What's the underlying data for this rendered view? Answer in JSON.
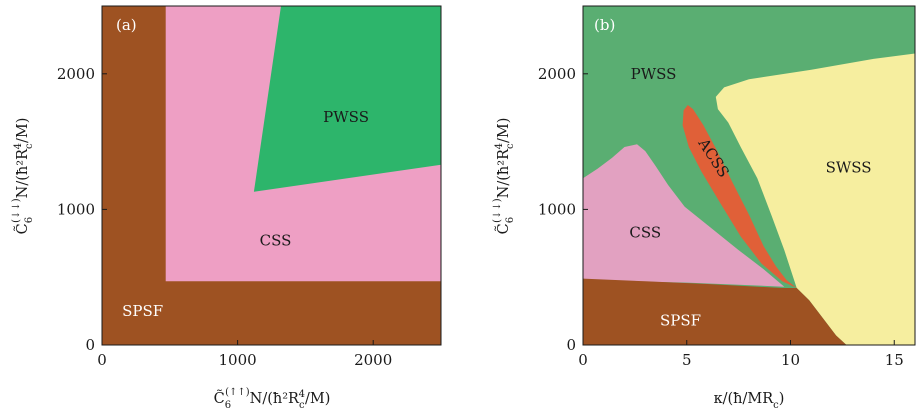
{
  "colors": {
    "SPSF": "#9e5222",
    "CSS": "#ee9fc4",
    "PWSS_a": "#2db56b",
    "PWSS_b": "#5aae72",
    "CSS_b": "#e2a1c1",
    "ACSS": "#e06038",
    "SWSS": "#f6ee9f"
  },
  "chart_data": [
    {
      "type": "heatmap",
      "panel_label": "(a)",
      "xlabel_parts": {
        "pre": "C̃",
        "sub": "6",
        "sup": "(↑↑)",
        "post": "N/(ħ²R",
        "sub2": "c",
        "sup2": "4",
        "end": "/M)"
      },
      "ylabel_parts": {
        "pre": "C̃",
        "sub": "6",
        "sup": "(↓↓)",
        "post": "N/(ħ²R",
        "sub2": "c",
        "sup2": "4",
        "end": "/M)"
      },
      "xlim": [
        0,
        2500
      ],
      "ylim": [
        0,
        2500
      ],
      "xticks": [
        0,
        1000,
        2000
      ],
      "yticks": [
        0,
        1000,
        2000
      ],
      "xtick_labels": [
        "0",
        "1000",
        "2000"
      ],
      "ytick_labels": [
        "0",
        "1000",
        "2000"
      ],
      "regions": [
        {
          "name": "SPSF",
          "color_key": "SPSF",
          "label_at": [
            300,
            250
          ],
          "polygon": [
            [
              0,
              0
            ],
            [
              2500,
              0
            ],
            [
              2500,
              2500
            ],
            [
              0,
              2500
            ]
          ]
        },
        {
          "name": "CSS",
          "color_key": "CSS",
          "label_at": [
            1280,
            770
          ],
          "polygon": [
            [
              470,
              470
            ],
            [
              2500,
              470
            ],
            [
              2500,
              2500
            ],
            [
              470,
              2500
            ]
          ]
        },
        {
          "name": "PWSS",
          "color_key": "PWSS_a",
          "label_at": [
            1800,
            1680
          ],
          "polygon": [
            [
              1120,
              1130
            ],
            [
              1320,
              2500
            ],
            [
              2500,
              2500
            ],
            [
              2500,
              1330
            ]
          ]
        }
      ]
    },
    {
      "type": "heatmap",
      "panel_label": "(b)",
      "xlabel_parts": {
        "pre": "κ/(ħ/MR",
        "sub": "c",
        "end": ")"
      },
      "ylabel_parts": {
        "pre": "C̃",
        "sub": "6",
        "sup": "(↓↓)",
        "post": "N/(ħ²R",
        "sub2": "c",
        "sup2": "4",
        "end": "/M)"
      },
      "xlim": [
        0,
        16
      ],
      "ylim": [
        0,
        2500
      ],
      "xticks": [
        0,
        5,
        10,
        15
      ],
      "yticks": [
        0,
        1000,
        2000
      ],
      "xtick_labels": [
        "0",
        "5",
        "10",
        "15"
      ],
      "ytick_labels": [
        "0",
        "1000",
        "2000"
      ],
      "regions": [
        {
          "name": "PWSS",
          "color_key": "PWSS_b",
          "label_at": [
            3.4,
            2000
          ],
          "polygon": [
            [
              0,
              0
            ],
            [
              16,
              0
            ],
            [
              16,
              2500
            ],
            [
              0,
              2500
            ]
          ]
        },
        {
          "name": "SWSS",
          "color_key": "SWSS",
          "label_at": [
            12.8,
            1310
          ],
          "polygon": [
            [
              6.4,
              1830
            ],
            [
              6.5,
              1740
            ],
            [
              7.0,
              1640
            ],
            [
              7.6,
              1460
            ],
            [
              8.4,
              1230
            ],
            [
              9.1,
              950
            ],
            [
              9.7,
              700
            ],
            [
              10.3,
              420
            ],
            [
              10.9,
              330
            ],
            [
              11.6,
              190
            ],
            [
              12.2,
              70
            ],
            [
              12.7,
              0
            ],
            [
              16,
              0
            ],
            [
              16,
              2150
            ],
            [
              14.0,
              2110
            ],
            [
              11.0,
              2030
            ],
            [
              8.0,
              1960
            ],
            [
              6.8,
              1900
            ]
          ]
        },
        {
          "name": "ACSS",
          "color_key": "ACSS",
          "label_at": [
            6.3,
            1380
          ],
          "rotate": 57,
          "polygon": [
            [
              5.05,
              1770
            ],
            [
              5.3,
              1740
            ],
            [
              5.8,
              1620
            ],
            [
              6.4,
              1450
            ],
            [
              7.2,
              1200
            ],
            [
              8.0,
              960
            ],
            [
              8.7,
              730
            ],
            [
              9.3,
              580
            ],
            [
              9.8,
              480
            ],
            [
              10.3,
              420
            ],
            [
              9.6,
              470
            ],
            [
              8.6,
              600
            ],
            [
              7.6,
              800
            ],
            [
              6.6,
              1050
            ],
            [
              5.7,
              1280
            ],
            [
              5.1,
              1460
            ],
            [
              4.8,
              1620
            ],
            [
              4.85,
              1730
            ]
          ]
        },
        {
          "name": "CSS",
          "color_key": "CSS_b",
          "label_at": [
            3.0,
            830
          ],
          "polygon": [
            [
              0,
              480
            ],
            [
              0,
              1230
            ],
            [
              0.7,
              1300
            ],
            [
              1.4,
              1380
            ],
            [
              2.0,
              1460
            ],
            [
              2.6,
              1480
            ],
            [
              3.0,
              1430
            ],
            [
              3.5,
              1320
            ],
            [
              4.1,
              1180
            ],
            [
              4.9,
              1020
            ],
            [
              6.2,
              860
            ],
            [
              7.5,
              700
            ],
            [
              8.7,
              560
            ],
            [
              9.7,
              430
            ],
            [
              5.0,
              460
            ],
            [
              2.0,
              470
            ]
          ]
        },
        {
          "name": "SPSF",
          "color_key": "SPSF",
          "label_at": [
            4.7,
            180
          ],
          "polygon": [
            [
              0,
              0
            ],
            [
              0,
              490
            ],
            [
              3.0,
              470
            ],
            [
              6.0,
              450
            ],
            [
              9.6,
              420
            ],
            [
              10.3,
              420
            ],
            [
              10.9,
              330
            ],
            [
              11.6,
              190
            ],
            [
              12.2,
              70
            ],
            [
              12.7,
              0
            ]
          ]
        }
      ]
    }
  ]
}
